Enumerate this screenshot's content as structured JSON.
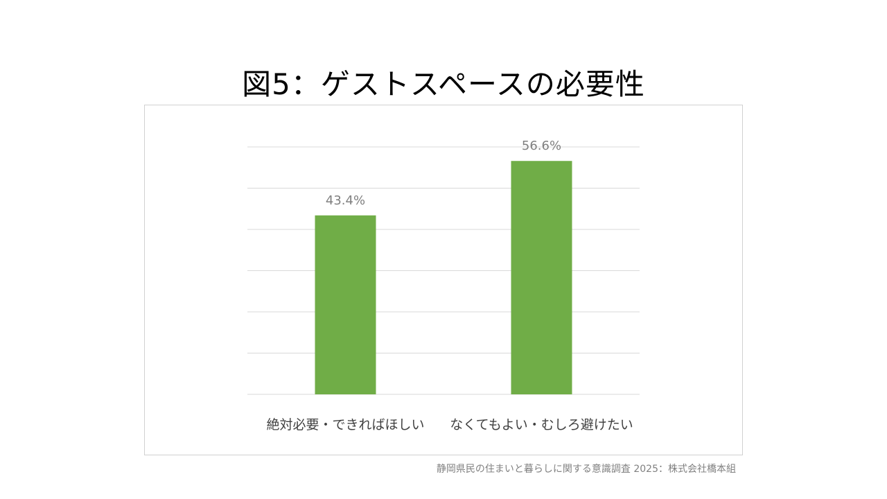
{
  "slide": {
    "title": "図5：ゲストスペースの必要性",
    "source": "静岡県民の住まいと暮らしに関する意識調査 2025：株式会社橋本組"
  },
  "colors": {
    "bar": "#70ad47",
    "grid": "#d9d9d9",
    "data_label": "#7f7f7f",
    "category_label": "#404040"
  },
  "chart_data": {
    "type": "bar",
    "categories": [
      "絶対必要・できればほしい",
      "なくてもよい・むしろ避けたい"
    ],
    "values": [
      43.4,
      56.6
    ],
    "data_labels": [
      "43.4%",
      "56.6%"
    ],
    "ylim": [
      0,
      60
    ],
    "grid": true
  }
}
